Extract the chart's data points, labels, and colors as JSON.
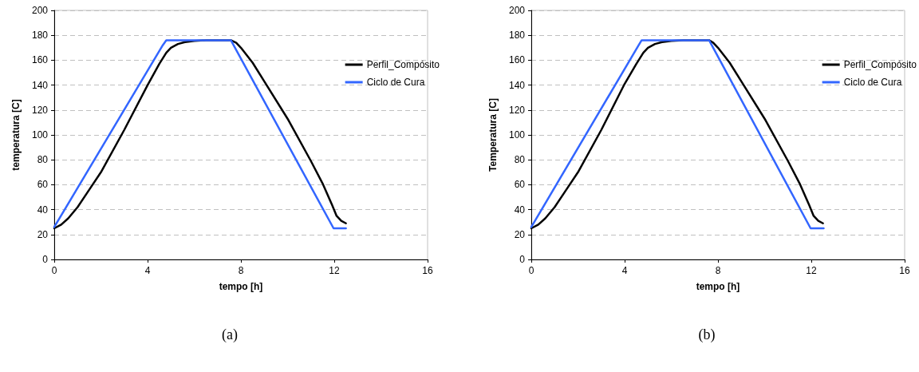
{
  "chart_data": [
    {
      "type": "line",
      "xlabel": "tempo [h]",
      "ylabel": "temperatura [C]",
      "xlim": [
        0,
        16
      ],
      "xticks": [
        0,
        4,
        8,
        12,
        16
      ],
      "ylim": [
        0,
        200
      ],
      "yticks": [
        0,
        20,
        40,
        60,
        80,
        100,
        120,
        140,
        160,
        180,
        200
      ],
      "grid": "y",
      "legend": "top right",
      "marker": "none",
      "line_style": "solid",
      "annotations": [
        "(a)"
      ],
      "series": [
        {
          "name": "Perfil_Compósito",
          "color": "#000000",
          "x": [
            0,
            0.3,
            0.6,
            1,
            1.5,
            2,
            3,
            4,
            4.5,
            4.8,
            5,
            5.3,
            5.6,
            6,
            6.5,
            7.57,
            7.8,
            8,
            8.5,
            9,
            10,
            11,
            11.5,
            11.9,
            12.1,
            12.3,
            12.5
          ],
          "values": [
            25,
            28,
            33,
            42,
            56,
            70,
            104,
            140,
            157,
            166,
            170,
            173,
            174.5,
            175.5,
            176,
            176,
            174,
            170,
            158,
            143,
            113,
            79,
            61,
            44,
            35,
            31,
            29
          ]
        },
        {
          "name": "Ciclo de Cura",
          "color": "#3366ff",
          "x": [
            0,
            4.65,
            4.8,
            7.57,
            11.97,
            12.5
          ],
          "values": [
            26,
            172,
            176,
            176,
            25,
            25
          ]
        }
      ]
    },
    {
      "type": "line",
      "xlabel": "tempo [h]",
      "ylabel": "Temperatura [C]",
      "xlim": [
        0,
        16
      ],
      "xticks": [
        0,
        4,
        8,
        12,
        16
      ],
      "ylim": [
        0,
        200
      ],
      "yticks": [
        0,
        20,
        40,
        60,
        80,
        100,
        120,
        140,
        160,
        180,
        200
      ],
      "grid": "y",
      "legend": "top right",
      "marker": "none",
      "line_style": "solid",
      "annotations": [
        "(b)"
      ],
      "series": [
        {
          "name": "Perfil_Compósito",
          "color": "#000000",
          "x": [
            0,
            0.3,
            0.6,
            1,
            1.5,
            2,
            3,
            4,
            4.5,
            4.8,
            5,
            5.3,
            5.6,
            6,
            6.5,
            7.62,
            7.8,
            8,
            8.5,
            9,
            10,
            11,
            11.5,
            11.9,
            12.1,
            12.3,
            12.5
          ],
          "values": [
            25,
            28,
            33,
            42,
            56,
            70,
            104,
            141,
            157,
            166,
            170,
            173,
            174.5,
            175.5,
            176,
            176,
            174,
            170,
            158,
            143,
            113,
            79,
            61,
            44,
            35,
            31,
            29
          ]
        },
        {
          "name": "Ciclo de Cura",
          "color": "#3366ff",
          "x": [
            0,
            4.6,
            4.73,
            7.62,
            11.97,
            12.53
          ],
          "values": [
            26,
            172,
            176,
            176,
            25,
            25
          ]
        }
      ]
    }
  ]
}
